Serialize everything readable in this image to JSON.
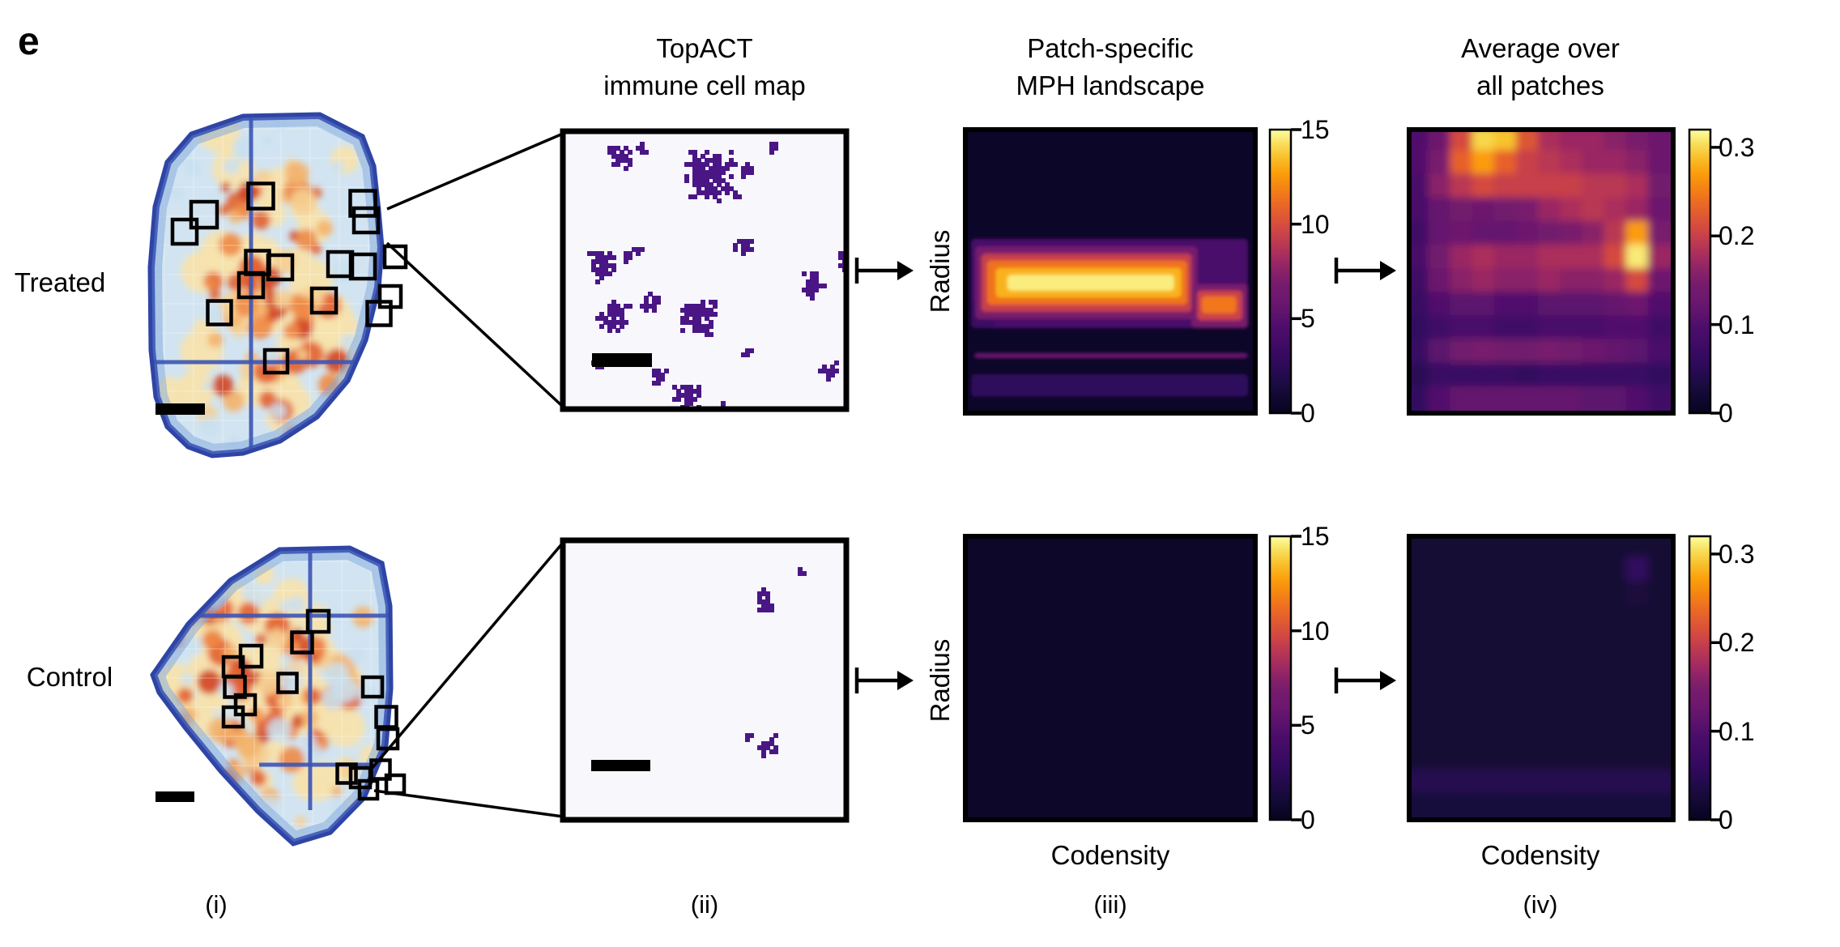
{
  "figure": {
    "panel_letter": "e",
    "row_labels": [
      "Treated",
      "Control"
    ],
    "column_titles": {
      "topact": [
        "TopACT",
        "immune cell map"
      ],
      "mph": [
        "Patch-specific",
        "MPH landscape"
      ],
      "avg": [
        "Average over",
        "all patches"
      ]
    },
    "axis": {
      "xlabel": "Codensity",
      "ylabel": "Radius"
    },
    "panel_numerals": [
      "(i)",
      "(ii)",
      "(iii)",
      "(iv)"
    ],
    "colorbars": {
      "mph": {
        "ticks": [
          "15",
          "10",
          "5",
          "0"
        ],
        "vmin": 0,
        "vmax": 15
      },
      "avg": {
        "ticks": [
          "0.3",
          "0.2",
          "0.1",
          "0"
        ],
        "vmin": 0,
        "vmax": 0.32
      }
    },
    "colors": {
      "immune_blob_purple": "#4a1685",
      "heatmap_dark_background": "#1a1037",
      "tissue_rim_blue": "#2e45a5",
      "tissue_base_blue": "#d2e4f1",
      "annotation_black": "#000000"
    }
  },
  "chart_data": [
    {
      "id": "patch_mph_treated",
      "type": "heatmap",
      "row": "Treated",
      "title": "Patch-specific MPH landscape",
      "xlabel": "Codensity",
      "ylabel": "Radius",
      "vmin": 0,
      "vmax": 15,
      "colorbar_ticks": [
        15,
        10,
        5,
        0
      ],
      "grid": false,
      "legend_position": "right-colorbar",
      "background_value": 0.4,
      "bands_format": "[x0_frac, x1_frac, y0_frac, y1_frac, value]",
      "bands": [
        [
          0.02,
          0.975,
          0.385,
          0.7,
          4.2
        ],
        [
          0.02,
          0.1,
          0.6,
          0.7,
          3.4
        ],
        [
          0.035,
          0.8,
          0.412,
          0.668,
          7.0
        ],
        [
          0.055,
          0.78,
          0.438,
          0.642,
          9.3
        ],
        [
          0.075,
          0.765,
          0.462,
          0.617,
          11.4
        ],
        [
          0.105,
          0.745,
          0.488,
          0.592,
          13.2
        ],
        [
          0.145,
          0.72,
          0.512,
          0.568,
          14.6
        ],
        [
          0.78,
          0.975,
          0.545,
          0.7,
          7.0
        ],
        [
          0.8,
          0.955,
          0.568,
          0.672,
          9.5
        ],
        [
          0.815,
          0.935,
          0.588,
          0.648,
          11.5
        ],
        [
          0.03,
          0.975,
          0.788,
          0.806,
          6.0
        ],
        [
          0.02,
          0.975,
          0.862,
          0.942,
          2.6
        ]
      ]
    },
    {
      "id": "patch_mph_control",
      "type": "heatmap",
      "row": "Control",
      "title": "Patch-specific MPH landscape",
      "xlabel": "Codensity",
      "ylabel": "Radius",
      "vmin": 0,
      "vmax": 15,
      "colorbar_ticks": [
        15,
        10,
        5,
        0
      ],
      "grid": false,
      "background_value": 0.5,
      "bands": []
    },
    {
      "id": "avg_mph_treated",
      "type": "heatmap",
      "row": "Treated",
      "title": "Average over all patches",
      "xlabel": "Codensity",
      "ylabel": "",
      "vmin": 0,
      "vmax": 0.32,
      "colorbar_ticks": [
        0.3,
        0.2,
        0.1,
        0
      ],
      "grid": false,
      "values": [
        [
          0.1,
          0.13,
          0.21,
          0.3,
          0.29,
          0.22,
          0.18,
          0.17,
          0.17,
          0.16,
          0.15,
          0.13
        ],
        [
          0.1,
          0.15,
          0.23,
          0.27,
          0.23,
          0.2,
          0.19,
          0.18,
          0.17,
          0.17,
          0.16,
          0.13
        ],
        [
          0.09,
          0.16,
          0.19,
          0.21,
          0.2,
          0.2,
          0.2,
          0.2,
          0.19,
          0.19,
          0.18,
          0.14
        ],
        [
          0.09,
          0.12,
          0.14,
          0.13,
          0.14,
          0.15,
          0.17,
          0.18,
          0.19,
          0.18,
          0.17,
          0.13
        ],
        [
          0.08,
          0.12,
          0.13,
          0.12,
          0.12,
          0.13,
          0.14,
          0.15,
          0.16,
          0.19,
          0.27,
          0.15
        ],
        [
          0.09,
          0.14,
          0.17,
          0.18,
          0.17,
          0.17,
          0.18,
          0.18,
          0.18,
          0.21,
          0.31,
          0.17
        ],
        [
          0.08,
          0.13,
          0.16,
          0.17,
          0.16,
          0.16,
          0.17,
          0.16,
          0.16,
          0.17,
          0.21,
          0.13
        ],
        [
          0.07,
          0.1,
          0.11,
          0.11,
          0.1,
          0.1,
          0.11,
          0.11,
          0.11,
          0.12,
          0.13,
          0.1
        ],
        [
          0.06,
          0.08,
          0.09,
          0.09,
          0.08,
          0.08,
          0.09,
          0.09,
          0.09,
          0.1,
          0.1,
          0.08
        ],
        [
          0.07,
          0.11,
          0.14,
          0.15,
          0.14,
          0.14,
          0.15,
          0.14,
          0.13,
          0.12,
          0.11,
          0.09
        ],
        [
          0.05,
          0.07,
          0.07,
          0.07,
          0.07,
          0.06,
          0.07,
          0.07,
          0.07,
          0.07,
          0.07,
          0.06
        ],
        [
          0.06,
          0.1,
          0.12,
          0.12,
          0.12,
          0.12,
          0.12,
          0.12,
          0.11,
          0.11,
          0.1,
          0.08
        ]
      ]
    },
    {
      "id": "avg_mph_control",
      "type": "heatmap",
      "row": "Control",
      "title": "Average over all patches",
      "xlabel": "Codensity",
      "ylabel": "",
      "vmin": 0,
      "vmax": 0.32,
      "colorbar_ticks": [
        0.3,
        0.2,
        0.1,
        0
      ],
      "grid": false,
      "values": [
        [
          0.02,
          0.02,
          0.02,
          0.02,
          0.02,
          0.02,
          0.02,
          0.02,
          0.02,
          0.02,
          0.02,
          0.02
        ],
        [
          0.02,
          0.02,
          0.02,
          0.02,
          0.02,
          0.02,
          0.02,
          0.02,
          0.02,
          0.02,
          0.06,
          0.02
        ],
        [
          0.02,
          0.02,
          0.02,
          0.02,
          0.02,
          0.02,
          0.02,
          0.02,
          0.02,
          0.02,
          0.03,
          0.02
        ],
        [
          0.02,
          0.02,
          0.02,
          0.02,
          0.02,
          0.02,
          0.02,
          0.02,
          0.02,
          0.02,
          0.02,
          0.02
        ],
        [
          0.02,
          0.02,
          0.02,
          0.02,
          0.02,
          0.02,
          0.02,
          0.02,
          0.02,
          0.02,
          0.02,
          0.02
        ],
        [
          0.02,
          0.02,
          0.02,
          0.02,
          0.02,
          0.02,
          0.02,
          0.02,
          0.02,
          0.02,
          0.02,
          0.02
        ],
        [
          0.02,
          0.02,
          0.02,
          0.02,
          0.02,
          0.02,
          0.02,
          0.02,
          0.02,
          0.02,
          0.02,
          0.02
        ],
        [
          0.02,
          0.02,
          0.02,
          0.02,
          0.02,
          0.02,
          0.02,
          0.02,
          0.02,
          0.02,
          0.02,
          0.02
        ],
        [
          0.02,
          0.02,
          0.02,
          0.02,
          0.02,
          0.02,
          0.02,
          0.02,
          0.02,
          0.02,
          0.02,
          0.02
        ],
        [
          0.02,
          0.02,
          0.02,
          0.02,
          0.02,
          0.02,
          0.02,
          0.02,
          0.02,
          0.02,
          0.02,
          0.02
        ],
        [
          0.045,
          0.045,
          0.045,
          0.045,
          0.045,
          0.045,
          0.045,
          0.045,
          0.045,
          0.045,
          0.045,
          0.045
        ],
        [
          0.028,
          0.028,
          0.028,
          0.028,
          0.028,
          0.028,
          0.028,
          0.028,
          0.028,
          0.028,
          0.028,
          0.028
        ]
      ]
    }
  ],
  "tissue_maps": {
    "patch_format": "[x, y, size]",
    "treated": {
      "patches": [
        [
          252,
          265,
          32
        ],
        [
          228,
          286,
          30
        ],
        [
          322,
          242,
          31
        ],
        [
          448,
          251,
          31
        ],
        [
          452,
          272,
          30
        ],
        [
          318,
          324,
          29
        ],
        [
          346,
          330,
          30
        ],
        [
          310,
          352,
          30
        ],
        [
          420,
          326,
          30
        ],
        [
          448,
          329,
          30
        ],
        [
          400,
          371,
          30
        ],
        [
          468,
          387,
          29
        ],
        [
          271,
          386,
          29
        ],
        [
          341,
          446,
          28
        ],
        [
          488,
          317,
          26
        ],
        [
          482,
          366,
          26
        ]
      ],
      "scale_bar": [
        192,
        498,
        61,
        14
      ]
    },
    "control": {
      "patches": [
        [
          393,
          767,
          26
        ],
        [
          373,
          793,
          25
        ],
        [
          310,
          810,
          26
        ],
        [
          288,
          823,
          24
        ],
        [
          290,
          848,
          25
        ],
        [
          303,
          870,
          24
        ],
        [
          288,
          885,
          24
        ],
        [
          355,
          843,
          23
        ],
        [
          460,
          848,
          24
        ],
        [
          477,
          885,
          25
        ],
        [
          479,
          912,
          24
        ],
        [
          445,
          960,
          24
        ],
        [
          470,
          950,
          23
        ],
        [
          428,
          955,
          23
        ],
        [
          455,
          975,
          22
        ],
        [
          488,
          968,
          22
        ]
      ],
      "scale_bar": [
        192,
        977,
        48,
        13
      ]
    }
  },
  "immune_maps": {
    "blob_format": "[x_frac, y_frac, radius_px]",
    "treated": {
      "blobs": [
        [
          0.2,
          0.075,
          13
        ],
        [
          0.265,
          0.055,
          5
        ],
        [
          0.52,
          0.15,
          26
        ],
        [
          0.455,
          0.095,
          8
        ],
        [
          0.645,
          0.125,
          8
        ],
        [
          0.73,
          0.055,
          4
        ],
        [
          0.6,
          0.23,
          4
        ],
        [
          0.25,
          0.415,
          5
        ],
        [
          0.135,
          0.475,
          15
        ],
        [
          0.215,
          0.45,
          6
        ],
        [
          0.305,
          0.6,
          10
        ],
        [
          0.175,
          0.665,
          16
        ],
        [
          0.475,
          0.665,
          19
        ],
        [
          0.625,
          0.4,
          9
        ],
        [
          0.865,
          0.555,
          12
        ],
        [
          0.995,
          0.46,
          10
        ],
        [
          0.335,
          0.875,
          8
        ],
        [
          0.425,
          0.945,
          14
        ],
        [
          0.645,
          0.79,
          5
        ],
        [
          0.925,
          0.855,
          9
        ],
        [
          0.56,
          0.995,
          6
        ],
        [
          0.115,
          0.83,
          4
        ]
      ],
      "scale_bar": [
        731,
        436,
        74,
        17
      ]
    },
    "control": {
      "blobs": [
        [
          0.835,
          0.115,
          3
        ],
        [
          0.7,
          0.21,
          11
        ],
        [
          0.645,
          0.7,
          4
        ],
        [
          0.71,
          0.735,
          11
        ]
      ],
      "scale_bar": [
        730,
        938,
        73,
        14
      ]
    }
  }
}
